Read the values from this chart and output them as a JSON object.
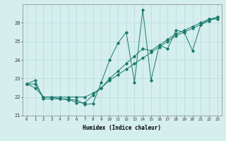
{
  "xlabel": "Humidex (Indice chaleur)",
  "ylabel": "",
  "bg_color": "#d5eeee",
  "line_color": "#1a7a6e",
  "grid_color": "#b8dada",
  "xlim": [
    -0.5,
    23.5
  ],
  "ylim": [
    21,
    27
  ],
  "yticks": [
    21,
    22,
    23,
    24,
    25,
    26
  ],
  "xticks": [
    0,
    1,
    2,
    3,
    4,
    5,
    6,
    7,
    8,
    9,
    10,
    11,
    12,
    13,
    14,
    15,
    16,
    17,
    18,
    19,
    20,
    21,
    22,
    23
  ],
  "series": [
    [
      22.7,
      22.9,
      21.9,
      21.9,
      21.9,
      21.85,
      21.85,
      21.6,
      21.65,
      22.8,
      24.0,
      24.9,
      25.5,
      22.8,
      26.7,
      22.9,
      24.8,
      24.6,
      25.6,
      25.5,
      24.5,
      25.9,
      26.2,
      26.2
    ],
    [
      22.7,
      22.7,
      22.0,
      22.0,
      22.0,
      22.0,
      22.0,
      22.0,
      22.2,
      22.5,
      22.9,
      23.2,
      23.5,
      23.8,
      24.1,
      24.4,
      24.7,
      25.0,
      25.3,
      25.5,
      25.7,
      25.9,
      26.1,
      26.3
    ],
    [
      22.7,
      22.5,
      22.0,
      22.0,
      21.9,
      21.9,
      21.7,
      21.7,
      22.1,
      22.5,
      23.0,
      23.4,
      23.8,
      24.2,
      24.6,
      24.5,
      24.8,
      25.1,
      25.4,
      25.6,
      25.8,
      26.0,
      26.2,
      26.3
    ]
  ]
}
